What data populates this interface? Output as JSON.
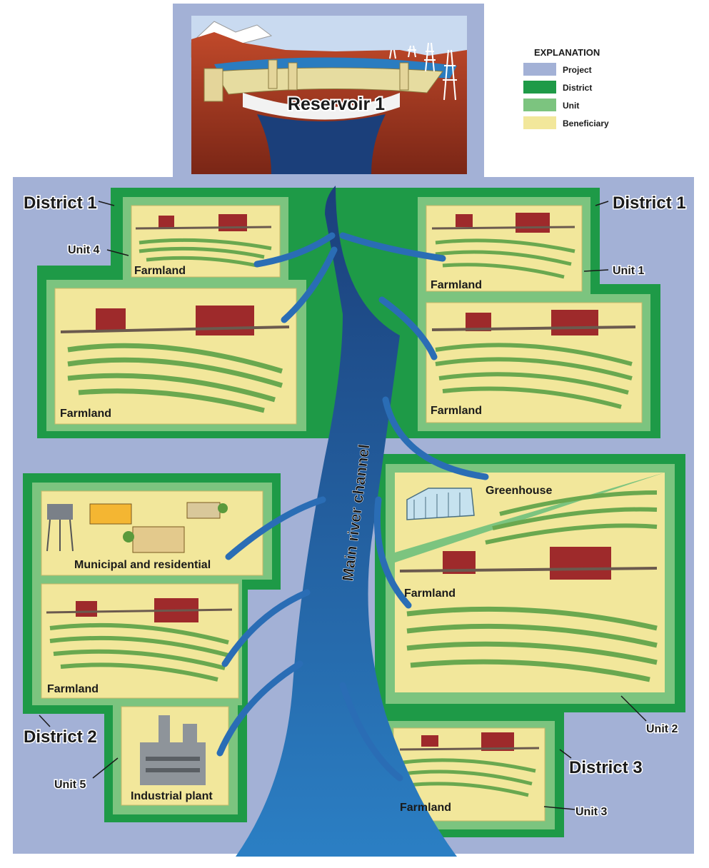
{
  "colors": {
    "project": "#a3b1d6",
    "district": "#1e9a47",
    "unit": "#7cc47f",
    "beneficiary": "#f2e79b",
    "river": "#1f5fa8"
  },
  "explanation": {
    "title": "EXPLANATION",
    "items": [
      {
        "label": "Project",
        "color": "#a3b1d6"
      },
      {
        "label": "District",
        "color": "#1e9a47"
      },
      {
        "label": "Unit",
        "color": "#7cc47f"
      },
      {
        "label": "Beneficiary",
        "color": "#f2e79b"
      }
    ]
  },
  "reservoir": {
    "label": "Reservoir 1"
  },
  "river": {
    "label": "Main river channel"
  },
  "labels": {
    "district1_left": "District 1",
    "district1_right": "District 1",
    "district2": "District 2",
    "district3": "District 3",
    "unit1": "Unit 1",
    "unit2": "Unit 2",
    "unit3": "Unit 3",
    "unit4": "Unit 4",
    "unit5": "Unit 5"
  },
  "beneficiaries": {
    "farmland_u4_top": "Farmland",
    "farmland_u4_bottom": "Farmland",
    "farmland_u1_top": "Farmland",
    "farmland_u1_bottom": "Farmland",
    "municipal": "Municipal and residential",
    "farmland_d2": "Farmland",
    "industrial": "Industrial plant",
    "greenhouse": "Greenhouse",
    "farmland_u2": "Farmland",
    "farmland_u3": "Farmland"
  }
}
